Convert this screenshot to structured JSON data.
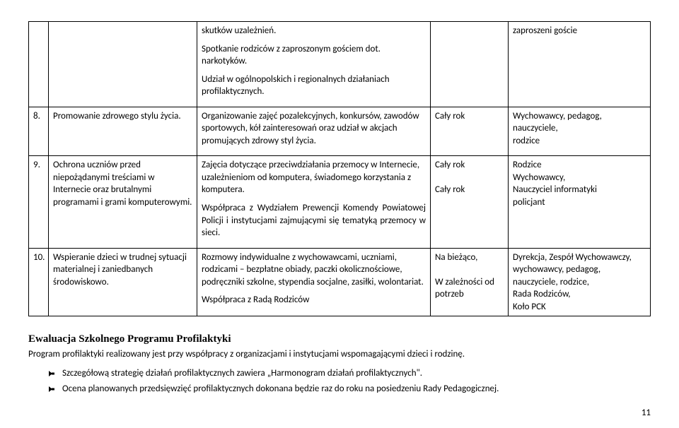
{
  "rows": [
    {
      "num": "",
      "title": "",
      "desc_paras": [
        "skutków uzależnień.",
        "Spotkanie rodziców z zaproszonym gościem dot. narkotyków.",
        "Udział w ogólnopolskich i regionalnych działaniach profilaktycznych."
      ],
      "term": "",
      "resp": "zaproszeni goście"
    },
    {
      "num": "8.",
      "title": "Promowanie zdrowego stylu życia.",
      "desc_paras": [
        "Organizowanie zajęć pozalekcyjnych, konkursów, zawodów sportowych, kół zainteresowań oraz udział w akcjach promujących zdrowy styl życia."
      ],
      "term": "Cały rok",
      "resp": "Wychowawcy, pedagog, nauczyciele,\nrodzice"
    },
    {
      "num": "9.",
      "title": "Ochrona uczniów przed niepożądanymi treściami w Internecie oraz brutalnymi programami i grami komputerowymi.",
      "desc_paras": [
        "Zajęcia dotyczące przeciwdziałania przemocy w Internecie, uzależnieniom od komputera, świadomego korzystania z komputera.",
        "Współpraca z Wydziałem Prewencji Komendy Powiatowej Policji i instytucjami zajmującymi się tematyką przemocy w sieci."
      ],
      "term": "Cały rok\n\nCały rok",
      "resp": "Rodzice\nWychowawcy,\nNauczyciel informatyki\npolicjant"
    },
    {
      "num": "10.",
      "title": "Wspieranie dzieci w trudnej sytuacji materialnej i zaniedbanych środowiskowo.",
      "desc_paras": [
        "Rozmowy indywidualne z wychowawcami, uczniami, rodzicami – bezpłatne obiady, paczki okolicznościowe, podręczniki szkolne, stypendia socjalne, zasiłki, wolontariat.",
        "Współpraca z Radą Rodziców"
      ],
      "term": "Na bieżąco,\n\nW zależności od potrzeb",
      "resp": "Dyrekcja, Zespół Wychowawczy,\nwychowawcy, pedagog, nauczyciele, rodzice,\n Rada Rodziców,\nKoło PCK"
    }
  ],
  "evaluation": {
    "heading": "Ewaluacja Szkolnego Programu Profilaktyki",
    "body": "Program profilaktyki realizowany jest przy współpracy z organizacjami i instytucjami wspomagającymi dzieci i rodzinę.",
    "bullets": [
      "Szczegółową strategię działań profilaktycznych zawiera „Harmonogram działań profilaktycznych\".",
      "Ocena planowanych przedsięwzięć profilaktycznych dokonana będzie raz do roku na posiedzeniu Rady Pedagogicznej."
    ]
  },
  "page_number": "11"
}
